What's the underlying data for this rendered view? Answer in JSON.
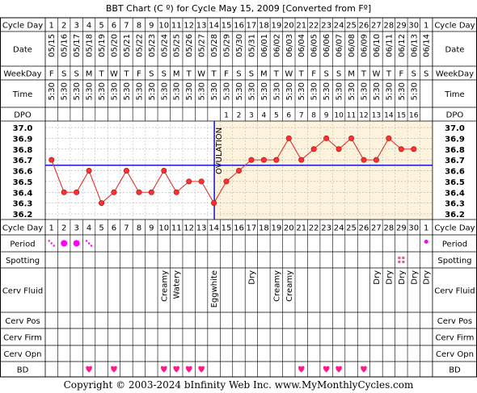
{
  "title": "BBT Chart (C º) for Cycle May 15, 2009  [Converted from Fº]",
  "copyright": "Copyright © 2003-2024 bInfinity Web Inc.    www.MyMonthlyCycles.com",
  "row_labels": {
    "cycle_day": "Cycle Day",
    "date": "Date",
    "weekday": "WeekDay",
    "time": "Time",
    "dpo": "DPO",
    "period": "Period",
    "spotting": "Spotting",
    "cerv_fluid": "Cerv Fluid",
    "cerv_pos": "Cerv Pos",
    "cerv_firm": "Cerv Firm",
    "cerv_opn": "Cerv Opn",
    "bd": "BD"
  },
  "cycle_days": [
    "1",
    "2",
    "3",
    "4",
    "5",
    "6",
    "7",
    "8",
    "9",
    "10",
    "11",
    "12",
    "13",
    "14",
    "15",
    "16",
    "17",
    "18",
    "19",
    "20",
    "21",
    "22",
    "23",
    "24",
    "25",
    "26",
    "27",
    "28",
    "29",
    "30",
    "1"
  ],
  "dates": [
    "05/15",
    "05/16",
    "05/17",
    "05/18",
    "05/19",
    "05/20",
    "05/21",
    "05/22",
    "05/23",
    "05/24",
    "05/25",
    "05/26",
    "05/27",
    "05/28",
    "05/29",
    "05/30",
    "05/31",
    "06/01",
    "06/02",
    "06/03",
    "06/04",
    "06/05",
    "06/06",
    "06/07",
    "06/08",
    "06/09",
    "06/10",
    "06/11",
    "06/12",
    "06/13",
    "06/14"
  ],
  "weekdays": [
    "F",
    "S",
    "S",
    "M",
    "T",
    "W",
    "T",
    "F",
    "S",
    "S",
    "M",
    "T",
    "W",
    "T",
    "F",
    "S",
    "S",
    "M",
    "T",
    "W",
    "T",
    "F",
    "S",
    "S",
    "M",
    "T",
    "W",
    "T",
    "F",
    "S",
    "S"
  ],
  "times": [
    "5:30",
    "5:30",
    "5:30",
    "5:30",
    "5:30",
    "5:30",
    "5:30",
    "5:30",
    "5:30",
    "5:30",
    "5:30",
    "5:30",
    "5:30",
    "5:30",
    "5:30",
    "5:30",
    "5:30",
    "5:30",
    "5:30",
    "5:30",
    "5:30",
    "5:30",
    "5:30",
    "5:30",
    "5:30",
    "5:30",
    "5:30",
    "5:30",
    "5:30",
    "5:30",
    ""
  ],
  "dpo": [
    "",
    "",
    "",
    "",
    "",
    "",
    "",
    "",
    "",
    "",
    "",
    "",
    "",
    "",
    "1",
    "2",
    "3",
    "4",
    "5",
    "6",
    "7",
    "8",
    "9",
    "10",
    "11",
    "12",
    "13",
    "14",
    "15",
    "16",
    ""
  ],
  "ovulation_label": "OVULATION",
  "ovulation_day_index": 13,
  "colors": {
    "grid": "#000000",
    "header_bg": "#ffffff",
    "luteal_bg": "#fdf3dc",
    "follicular_bg": "#ffffff",
    "line": "#e03030",
    "point_fill": "#ff3030",
    "coverline": "#0000cc",
    "period": "#ff00ff",
    "heart": "#ff1a8c",
    "spotting": "#e060a0"
  },
  "chart_data": {
    "type": "line",
    "title": "BBT Chart (C º) for Cycle May 15, 2009  [Converted from Fº]",
    "xlabel": "Cycle Day",
    "ylabel": "",
    "ylim": [
      36.2,
      37.0
    ],
    "y_ticks": [
      "37.0",
      "36.9",
      "36.8",
      "36.7",
      "36.6",
      "36.5",
      "36.4",
      "36.3",
      "36.2"
    ],
    "x": [
      1,
      2,
      3,
      4,
      5,
      6,
      7,
      8,
      9,
      10,
      11,
      12,
      13,
      14,
      15,
      16,
      17,
      18,
      19,
      20,
      21,
      22,
      23,
      24,
      25,
      26,
      27,
      28,
      29,
      30
    ],
    "series": [
      {
        "values": [
          36.7,
          36.4,
          36.4,
          36.6,
          36.3,
          36.4,
          36.6,
          36.4,
          36.4,
          36.6,
          36.4,
          36.5,
          36.5,
          36.3,
          36.5,
          36.6,
          36.7,
          36.7,
          36.7,
          36.9,
          36.7,
          36.8,
          36.9,
          36.8,
          36.9,
          36.7,
          36.7,
          36.9,
          36.8,
          36.8
        ]
      }
    ],
    "coverline": 36.65,
    "grid": true,
    "legend": "none"
  },
  "period": [
    "light",
    "heavy",
    "heavy",
    "light",
    "",
    "",
    "",
    "",
    "",
    "",
    "",
    "",
    "",
    "",
    "",
    "",
    "",
    "",
    "",
    "",
    "",
    "",
    "",
    "",
    "",
    "",
    "",
    "",
    "",
    "",
    "dot"
  ],
  "spotting": [
    "",
    "",
    "",
    "",
    "",
    "",
    "",
    "",
    "",
    "",
    "",
    "",
    "",
    "",
    "",
    "",
    "",
    "",
    "",
    "",
    "",
    "",
    "",
    "",
    "",
    "",
    "",
    "",
    "spot",
    "",
    ""
  ],
  "cerv_fluid": [
    "",
    "",
    "",
    "",
    "",
    "",
    "",
    "",
    "",
    "Creamy",
    "Watery",
    "",
    "",
    "Eggwhite",
    "",
    "",
    "Dry",
    "",
    "Creamy",
    "Creamy",
    "",
    "",
    "",
    "",
    "",
    "",
    "Dry",
    "Dry",
    "Dry",
    "Dry",
    "Dry"
  ],
  "bd": [
    "",
    "",
    "",
    "heart",
    "",
    "heart",
    "",
    "",
    "",
    "heart",
    "heart",
    "heart",
    "heart",
    "",
    "",
    "",
    "",
    "",
    "",
    "",
    "heart",
    "",
    "heart",
    "heart",
    "",
    "heart",
    "",
    "",
    "",
    "",
    ""
  ]
}
